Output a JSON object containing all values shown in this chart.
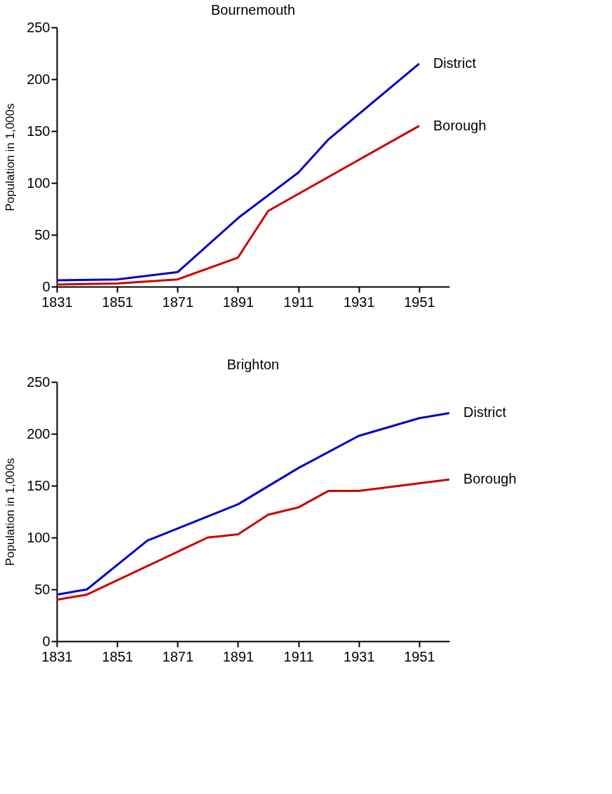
{
  "chart_data": [
    {
      "type": "line",
      "title": "Bournemouth",
      "ylabel": "Population in 1,000s",
      "xlim": [
        1831,
        1961
      ],
      "xticks": [
        1831,
        1851,
        1871,
        1891,
        1911,
        1931,
        1951
      ],
      "ylim": [
        0,
        250
      ],
      "yticks": [
        0,
        50,
        100,
        150,
        200,
        250
      ],
      "grid": false,
      "legend": false,
      "marker": "none",
      "line_style": "solid",
      "series": [
        {
          "name": "District",
          "color": "#0000cc",
          "x": [
            1831,
            1851,
            1871,
            1891,
            1911,
            1921,
            1951
          ],
          "values": [
            6,
            7,
            14,
            66,
            110,
            142,
            215
          ]
        },
        {
          "name": "Borough",
          "color": "#cc0000",
          "x": [
            1831,
            1851,
            1871,
            1891,
            1901,
            1951
          ],
          "values": [
            2,
            3,
            7,
            28,
            73,
            155
          ]
        }
      ]
    },
    {
      "type": "line",
      "title": "Brighton",
      "ylabel": "Population in 1,000s",
      "xlim": [
        1831,
        1961
      ],
      "xticks": [
        1831,
        1851,
        1871,
        1891,
        1911,
        1931,
        1951
      ],
      "ylim": [
        0,
        250
      ],
      "yticks": [
        0,
        50,
        100,
        150,
        200,
        250
      ],
      "grid": false,
      "legend": false,
      "marker": "none",
      "line_style": "solid",
      "series": [
        {
          "name": "District",
          "color": "#0000cc",
          "x": [
            1831,
            1841,
            1861,
            1891,
            1911,
            1931,
            1951,
            1961
          ],
          "values": [
            45,
            50,
            97,
            132,
            167,
            198,
            215,
            220
          ]
        },
        {
          "name": "Borough",
          "color": "#cc0000",
          "x": [
            1831,
            1841,
            1881,
            1891,
            1901,
            1911,
            1921,
            1931,
            1961
          ],
          "values": [
            40,
            45,
            100,
            103,
            122,
            129,
            145,
            145,
            156
          ]
        }
      ]
    }
  ]
}
